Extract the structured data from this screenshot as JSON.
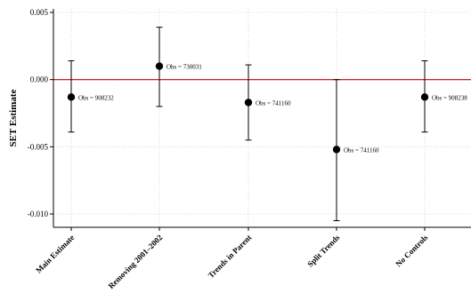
{
  "chart_data": {
    "type": "scatter",
    "ylabel": "SET Estimate",
    "xlabel": "",
    "title": "",
    "ylim": [
      -0.011,
      0.005
    ],
    "yticks": [
      0.005,
      0.0,
      -0.005,
      -0.01
    ],
    "ytick_labels": [
      "0.005",
      "0.000",
      "-0.005",
      "-0.010"
    ],
    "categories": [
      "Main Estimate",
      "Removing 2001–2002",
      "Trends in Parent",
      "Split Trends",
      "No Controls"
    ],
    "estimates": [
      -0.0013,
      0.001,
      -0.0017,
      -0.0052,
      -0.0013
    ],
    "ci_lower": [
      -0.0039,
      -0.002,
      -0.0045,
      -0.0105,
      -0.0039
    ],
    "ci_upper": [
      0.0014,
      0.0039,
      0.0011,
      0.0,
      0.0014
    ],
    "obs_labels": [
      "Obs = 908232",
      "Obs = 730031",
      "Obs = 741160",
      "Obs = 741160",
      "Obs = 908238"
    ],
    "reference_line": {
      "y": 0.0,
      "color": "#cc0000"
    },
    "grid": true,
    "colors": {
      "marker": "#000000",
      "grid": "#d9d9d9",
      "axis": "#000000"
    }
  }
}
